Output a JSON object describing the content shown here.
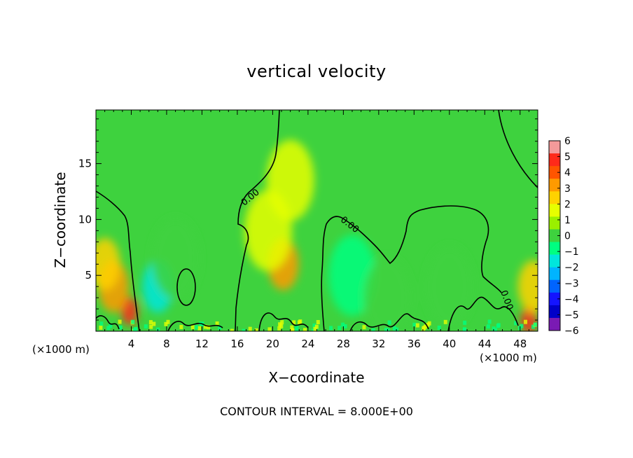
{
  "chart_data": {
    "type": "heatmap",
    "title": "vertical velocity",
    "xlabel": "X−coordinate",
    "ylabel": "Z−coordinate",
    "x_unit": "(×1000 m)",
    "x_ticks": [
      4,
      8,
      12,
      16,
      20,
      24,
      28,
      32,
      36,
      40,
      44,
      48
    ],
    "y_ticks": [
      5,
      10,
      15
    ],
    "xlim": [
      0,
      50
    ],
    "ylim": [
      0,
      19.8
    ],
    "contour_label": "0.00",
    "contour_interval_text": "CONTOUR INTERVAL = 8.000E+00",
    "colorbar": {
      "levels": [
        6,
        5,
        4,
        3,
        2,
        1,
        0,
        -1,
        -2,
        -3,
        -4,
        -5,
        -6
      ],
      "labels": [
        "6",
        "5",
        "4",
        "3",
        "2",
        "1",
        "0",
        "−1",
        "−2",
        "−3",
        "−4",
        "−5",
        "−6"
      ],
      "colors": [
        "#f49a9a",
        "#ff2a1a",
        "#ff5500",
        "#ff9a00",
        "#ffd200",
        "#e6ff00",
        "#9af000",
        "#3ed23e",
        "#00ff80",
        "#00e6dc",
        "#00b4ff",
        "#0064ff",
        "#1414ff",
        "#0000c8",
        "#7a1ab4"
      ]
    },
    "features": [
      {
        "x": 3.8,
        "z": 1.8,
        "value": 5.5
      },
      {
        "x": 2.0,
        "z": 4.0,
        "value": 3
      },
      {
        "x": 1.0,
        "z": 6.0,
        "value": 2
      },
      {
        "x": 21.2,
        "z": 6.0,
        "value": 3
      },
      {
        "x": 19.5,
        "z": 9.0,
        "value": 1.5
      },
      {
        "x": 22.0,
        "z": 13.5,
        "value": 0.8
      },
      {
        "x": 7.0,
        "z": 4.0,
        "value": -2.5
      },
      {
        "x": 9.0,
        "z": 6.5,
        "value": -1.2
      },
      {
        "x": 29.0,
        "z": 5.0,
        "value": -1.5
      },
      {
        "x": 33.0,
        "z": 3.0,
        "value": -1.2
      },
      {
        "x": 40.0,
        "z": 4.0,
        "value": -1.0
      },
      {
        "x": 49.0,
        "z": 1.0,
        "value": 5.0
      },
      {
        "x": 49.5,
        "z": 4.0,
        "value": 2.5
      }
    ]
  }
}
